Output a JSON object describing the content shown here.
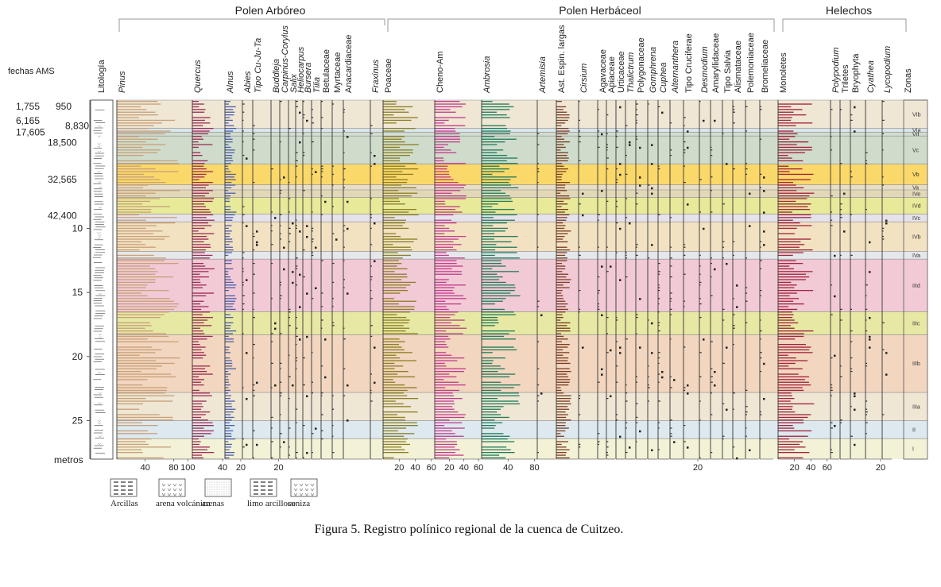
{
  "chart_data": {
    "type": "area",
    "title": "Figura 5. Registro polínico regional de la cuenca de Cuitzeo.",
    "group_labels": [
      "Polen Arbóreo",
      "Polen Herbáceol",
      "Helechos"
    ],
    "header_labels": {
      "dates": "fechas AMS",
      "lithology": "Litología",
      "zones": "Zonas"
    },
    "ylabel": "metros",
    "ylim": [
      0,
      28
    ],
    "depth_ticks": [
      "10",
      "15",
      "20",
      "25"
    ],
    "ams_dates": [
      {
        "label": "1,755",
        "depth": 0.5
      },
      {
        "label": "950",
        "depth": 0.5
      },
      {
        "label": "6,165",
        "depth": 1.6
      },
      {
        "label": "8,830",
        "depth": 2.0
      },
      {
        "label": "17,605",
        "depth": 2.5
      },
      {
        "label": "18,500",
        "depth": 3.3
      },
      {
        "label": "32,565",
        "depth": 6.2
      },
      {
        "label": "42,400",
        "depth": 9.0
      }
    ],
    "taxa": [
      {
        "name": "Pinus",
        "italic": true,
        "group": "arboreal",
        "color": "#c7a079",
        "max": 100,
        "ticks": [
          "40",
          "80",
          "100"
        ]
      },
      {
        "name": "Quercus",
        "italic": true,
        "group": "arboreal",
        "color": "#9c2a54",
        "max": 40,
        "ticks": [
          "40"
        ]
      },
      {
        "name": "Alnus",
        "italic": true,
        "group": "arboreal",
        "color": "#4c5ea8",
        "max": 20,
        "ticks": [
          "20"
        ]
      },
      {
        "name": "Abies",
        "italic": true,
        "group": "arboreal",
        "color": "#2f6e33",
        "max": 8,
        "ticks": []
      },
      {
        "name": "Tipo Cu-Ju-Ta",
        "italic": true,
        "group": "arboreal",
        "color": "#333333",
        "max": 8,
        "ticks": []
      },
      {
        "name": "Buddleja",
        "italic": true,
        "group": "arboreal",
        "color": "#333333",
        "max": 20,
        "ticks": [
          "20"
        ]
      },
      {
        "name": "Carpinus-Corylus",
        "italic": true,
        "group": "arboreal",
        "color": "#333333",
        "max": 8,
        "ticks": []
      },
      {
        "name": "Salix",
        "italic": true,
        "group": "arboreal",
        "color": "#333333",
        "max": 8,
        "ticks": []
      },
      {
        "name": "Heliocarpus",
        "italic": true,
        "group": "arboreal",
        "color": "#333333",
        "max": 8,
        "ticks": []
      },
      {
        "name": "Bursera",
        "italic": true,
        "group": "arboreal",
        "color": "#333333",
        "max": 8,
        "ticks": []
      },
      {
        "name": "Tilia",
        "italic": true,
        "group": "arboreal",
        "color": "#333333",
        "max": 8,
        "ticks": []
      },
      {
        "name": "Betulaceae",
        "italic": false,
        "group": "arboreal",
        "color": "#333333",
        "max": 8,
        "ticks": []
      },
      {
        "name": "Myrtaceae",
        "italic": false,
        "group": "arboreal",
        "color": "#333333",
        "max": 8,
        "ticks": []
      },
      {
        "name": "Anacardiaceae",
        "italic": false,
        "group": "arboreal",
        "color": "#333333",
        "max": 8,
        "ticks": []
      },
      {
        "name": "Fraxinus",
        "italic": true,
        "group": "arboreal",
        "color": "#333333",
        "max": 8,
        "ticks": []
      },
      {
        "name": "Poaceae",
        "italic": false,
        "group": "herbaceous",
        "color": "#8a7d22",
        "max": 60,
        "ticks": [
          "20",
          "40",
          "60"
        ]
      },
      {
        "name": "Cheno-Am",
        "italic": false,
        "group": "herbaceous",
        "color": "#c23a8c",
        "max": 60,
        "ticks": [
          "20",
          "40",
          "60"
        ]
      },
      {
        "name": "Ambrosia",
        "italic": true,
        "group": "herbaceous",
        "color": "#1f7a5a",
        "max": 80,
        "ticks": [
          "40",
          "80"
        ]
      },
      {
        "name": "Artemisia",
        "italic": true,
        "group": "herbaceous",
        "color": "#333333",
        "max": 8,
        "ticks": []
      },
      {
        "name": "Ast. Espin. largas",
        "italic": false,
        "group": "herbaceous",
        "color": "#7a3a1e",
        "max": 20,
        "ticks": []
      },
      {
        "name": "Cirsium",
        "italic": true,
        "group": "herbaceous",
        "color": "#333333",
        "max": 8,
        "ticks": []
      },
      {
        "name": "Agavaceae",
        "italic": false,
        "group": "herbaceous",
        "color": "#333333",
        "max": 8,
        "ticks": []
      },
      {
        "name": "Apiaceae",
        "italic": false,
        "group": "herbaceous",
        "color": "#333333",
        "max": 8,
        "ticks": []
      },
      {
        "name": "Urticaceae",
        "italic": false,
        "group": "herbaceous",
        "color": "#333333",
        "max": 8,
        "ticks": []
      },
      {
        "name": "Thalictrum",
        "italic": true,
        "group": "herbaceous",
        "color": "#333333",
        "max": 8,
        "ticks": []
      },
      {
        "name": "Polygonaceae",
        "italic": false,
        "group": "herbaceous",
        "color": "#333333",
        "max": 8,
        "ticks": []
      },
      {
        "name": "Gomphrena",
        "italic": true,
        "group": "herbaceous",
        "color": "#333333",
        "max": 8,
        "ticks": []
      },
      {
        "name": "Cuphea",
        "italic": true,
        "group": "herbaceous",
        "color": "#333333",
        "max": 8,
        "ticks": []
      },
      {
        "name": "Alternanthera",
        "italic": true,
        "group": "herbaceous",
        "color": "#333333",
        "max": 8,
        "ticks": []
      },
      {
        "name": "Tipo Cruciferae",
        "italic": false,
        "group": "herbaceous",
        "color": "#333333",
        "max": 20,
        "ticks": [
          "20"
        ]
      },
      {
        "name": "Desmodium",
        "italic": true,
        "group": "herbaceous",
        "color": "#333333",
        "max": 8,
        "ticks": []
      },
      {
        "name": "Amaryllidaceae",
        "italic": false,
        "group": "herbaceous",
        "color": "#333333",
        "max": 8,
        "ticks": []
      },
      {
        "name": "Tipo Salvia",
        "italic": false,
        "group": "herbaceous",
        "color": "#333333",
        "max": 8,
        "ticks": []
      },
      {
        "name": "Alismataceae",
        "italic": false,
        "group": "herbaceous",
        "color": "#333333",
        "max": 8,
        "ticks": []
      },
      {
        "name": "Polemoniaceae",
        "italic": false,
        "group": "herbaceous",
        "color": "#333333",
        "max": 8,
        "ticks": []
      },
      {
        "name": "Bromeliaceae",
        "italic": false,
        "group": "herbaceous",
        "color": "#333333",
        "max": 8,
        "ticks": []
      },
      {
        "name": "Monoletes",
        "italic": false,
        "group": "ferns",
        "color": "#a0203a",
        "max": 60,
        "ticks": [
          "20",
          "40",
          "60"
        ]
      },
      {
        "name": "Polypodium",
        "italic": true,
        "group": "ferns",
        "color": "#333333",
        "max": 8,
        "ticks": []
      },
      {
        "name": "Triletes",
        "italic": false,
        "group": "ferns",
        "color": "#333333",
        "max": 8,
        "ticks": []
      },
      {
        "name": "Bryophyta",
        "italic": false,
        "group": "ferns",
        "color": "#333333",
        "max": 8,
        "ticks": []
      },
      {
        "name": "Cyathea",
        "italic": true,
        "group": "ferns",
        "color": "#333333",
        "max": 20,
        "ticks": [
          "20"
        ]
      },
      {
        "name": "Lycopodium",
        "italic": true,
        "group": "ferns",
        "color": "#333333",
        "max": 8,
        "ticks": []
      }
    ],
    "zones": [
      {
        "name": "VIb",
        "from": 0.0,
        "to": 2.2,
        "color": "#efe6d4"
      },
      {
        "name": "VIa",
        "from": 2.2,
        "to": 2.5,
        "color": "#d9e6ea"
      },
      {
        "name": "Vd",
        "from": 2.5,
        "to": 2.8,
        "color": "#d2dccf"
      },
      {
        "name": "Vc",
        "from": 2.8,
        "to": 5.0,
        "color": "#cfdccb"
      },
      {
        "name": "Vb",
        "from": 5.0,
        "to": 6.6,
        "color": "#fbd86a"
      },
      {
        "name": "Va",
        "from": 6.6,
        "to": 7.0,
        "color": "#e8dec8"
      },
      {
        "name": "IVe",
        "from": 7.0,
        "to": 7.6,
        "color": "#e2d8b8"
      },
      {
        "name": "IVd",
        "from": 7.6,
        "to": 8.9,
        "color": "#e8ea9a"
      },
      {
        "name": "IVc",
        "from": 8.9,
        "to": 9.5,
        "color": "#e6e2ec"
      },
      {
        "name": "IVb",
        "from": 9.5,
        "to": 11.8,
        "color": "#f3e2c2"
      },
      {
        "name": "IVa",
        "from": 11.8,
        "to": 12.4,
        "color": "#e4e8ea"
      },
      {
        "name": "IIId",
        "from": 12.4,
        "to": 16.5,
        "color": "#f2cad6"
      },
      {
        "name": "IIIc",
        "from": 16.5,
        "to": 18.3,
        "color": "#e6e8a4"
      },
      {
        "name": "IIIb",
        "from": 18.3,
        "to": 22.8,
        "color": "#f2d6bf"
      },
      {
        "name": "IIIa",
        "from": 22.8,
        "to": 25.0,
        "color": "#efe6d4"
      },
      {
        "name": "II",
        "from": 25.0,
        "to": 26.4,
        "color": "#dde9ef"
      },
      {
        "name": "I",
        "from": 26.4,
        "to": 28.0,
        "color": "#f3f1d6"
      }
    ],
    "lithology_legend": [
      "Arcillas",
      "arena volcánica",
      "arenas",
      "limo arcilloso",
      "ceniza"
    ]
  }
}
